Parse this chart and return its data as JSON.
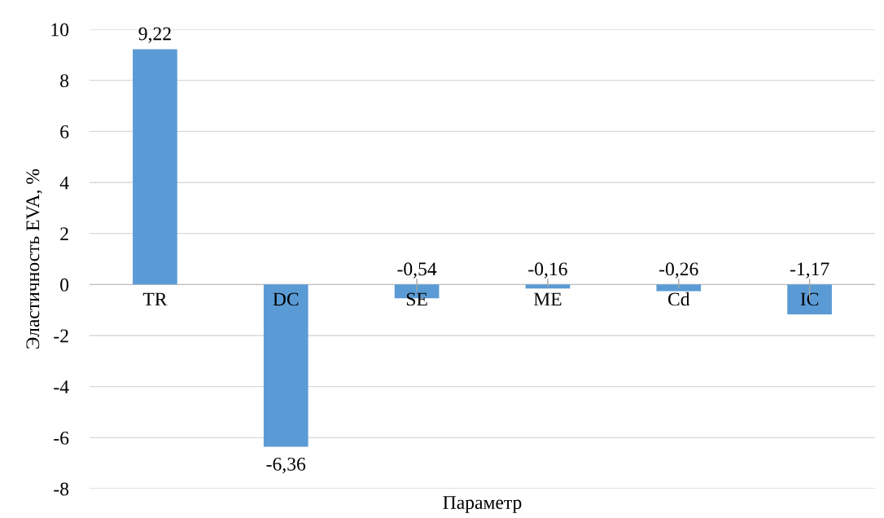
{
  "chart_data": {
    "type": "bar",
    "xlabel": "Параметр",
    "ylabel": "Эластичность EVA, %",
    "categories": [
      "TR",
      "DC",
      "SE",
      "ME",
      "Cd",
      "IC"
    ],
    "values": [
      9.22,
      -6.36,
      -0.54,
      -0.16,
      -0.26,
      -1.17
    ],
    "value_labels": [
      "9,22",
      "-6,36",
      "-0,54",
      "-0,16",
      "-0,26",
      "-1,17"
    ],
    "color": "#5b9bd5",
    "ylim": [
      -8,
      10
    ],
    "yticks": [
      -8,
      -6,
      -4,
      -2,
      0,
      2,
      4,
      6,
      8,
      10
    ],
    "grid": "y"
  }
}
